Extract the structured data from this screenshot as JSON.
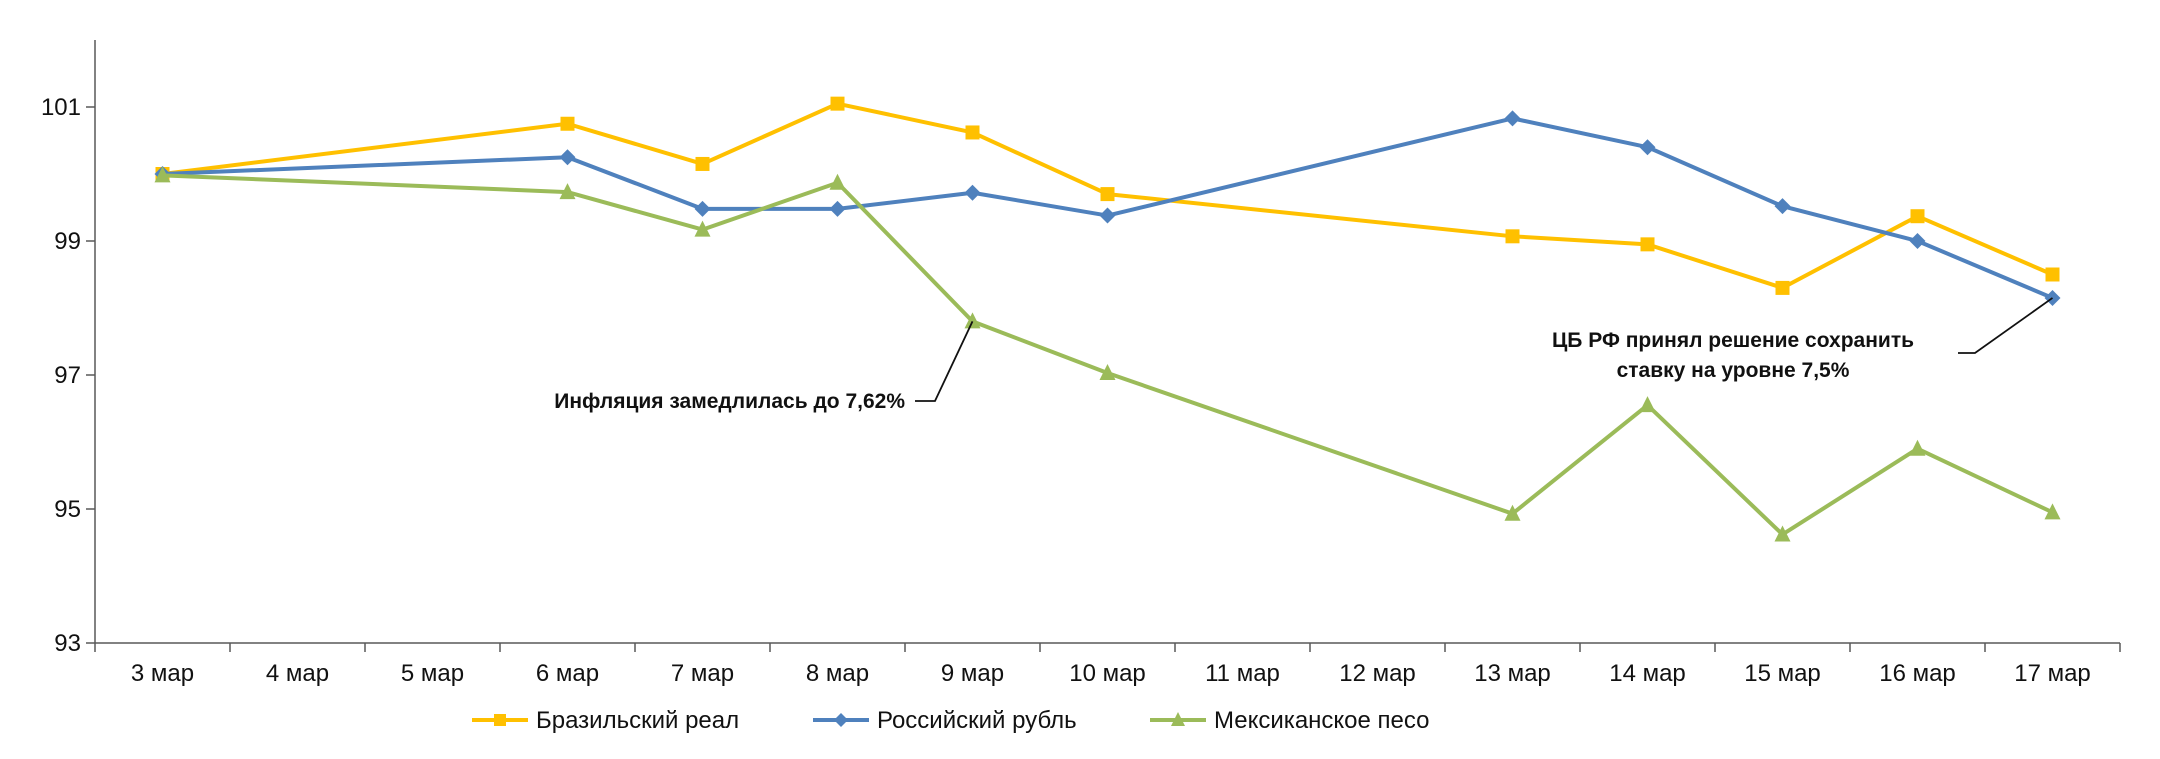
{
  "chart_data": {
    "type": "line",
    "title": "",
    "xlabel": "",
    "ylabel": "",
    "ylim": [
      93,
      102
    ],
    "yticks": [
      93,
      95,
      97,
      99,
      101
    ],
    "categories": [
      "3 мар",
      "4 мар",
      "5 мар",
      "6 мар",
      "7 мар",
      "8 мар",
      "9 мар",
      "10 мар",
      "11 мар",
      "12 мар",
      "13 мар",
      "14 мар",
      "15 мар",
      "16 мар",
      "17 мар"
    ],
    "grid": false,
    "legend_position": "bottom",
    "series": [
      {
        "name": "Бразильский реал",
        "color": "#FFC000",
        "marker": "square",
        "values": [
          100.0,
          null,
          null,
          100.75,
          100.15,
          101.05,
          100.62,
          99.7,
          null,
          null,
          99.07,
          98.95,
          98.3,
          99.37,
          98.5
        ]
      },
      {
        "name": "Российский рубль",
        "color": "#4F81BD",
        "marker": "diamond",
        "values": [
          100.0,
          null,
          null,
          100.25,
          99.48,
          99.48,
          99.72,
          99.38,
          null,
          null,
          100.83,
          100.4,
          99.52,
          99.0,
          98.15
        ]
      },
      {
        "name": "Мексиканское песо",
        "color": "#9BBB59",
        "marker": "triangle",
        "values": [
          99.98,
          null,
          null,
          99.73,
          99.17,
          99.87,
          97.8,
          97.03,
          null,
          null,
          94.93,
          96.55,
          94.62,
          95.9,
          94.95
        ]
      }
    ],
    "annotations": [
      {
        "text_lines": [
          "Инфляция замедлилась до 7,62%"
        ],
        "target_category": "9 мар",
        "target_value": 97.8,
        "series": "Мексиканское песо"
      },
      {
        "text_lines": [
          "ЦБ РФ принял решение сохранить",
          "ставку на уровне 7,5%"
        ],
        "target_category": "17 мар",
        "target_value": 98.15,
        "series": "Российский рубль"
      }
    ]
  }
}
